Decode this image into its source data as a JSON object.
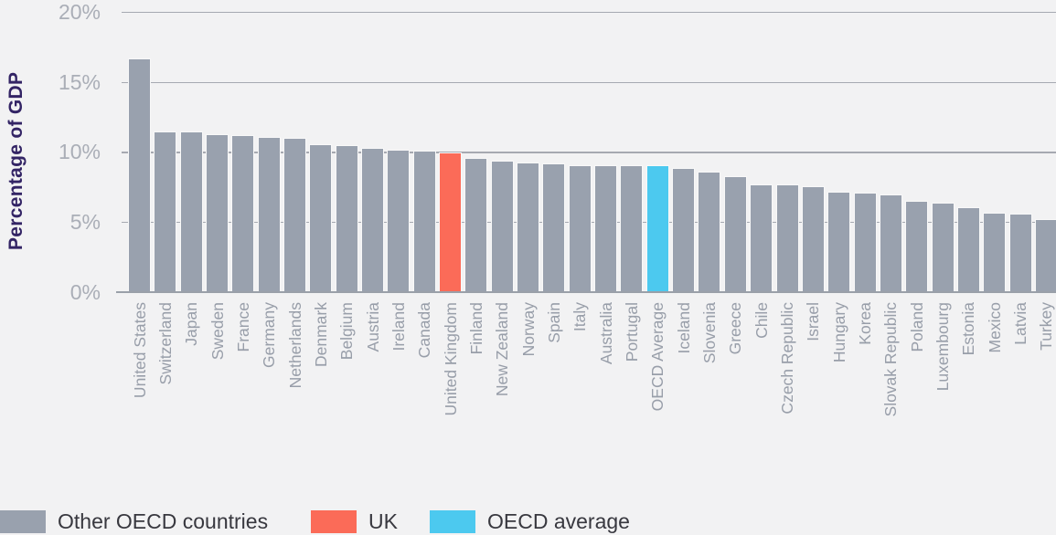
{
  "chart_data": {
    "type": "bar",
    "title": "",
    "xlabel": "",
    "ylabel": "Percentage of GDP",
    "ylim": [
      0,
      20
    ],
    "y_ticks": [
      {
        "label": "0%",
        "value": 0
      },
      {
        "label": "5%",
        "value": 5
      },
      {
        "label": "10%",
        "value": 10
      },
      {
        "label": "15%",
        "value": 15
      },
      {
        "label": "20%",
        "value": 20
      }
    ],
    "grid": "horizontal gridlines at each 5% tick, drawn behind bars",
    "legend_position": "bottom",
    "categories": [
      "United States",
      "Switzerland",
      "Japan",
      "Sweden",
      "France",
      "Germany",
      "Netherlands",
      "Denmark",
      "Belgium",
      "Austria",
      "Ireland",
      "Canada",
      "United Kingdom",
      "Finland",
      "New Zealand",
      "Norway",
      "Spain",
      "Italy",
      "Australia",
      "Portugal",
      "OECD Average",
      "Iceland",
      "Slovenia",
      "Greece",
      "Chile",
      "Czech Republic",
      "Israel",
      "Hungary",
      "Korea",
      "Slovak Republic",
      "Poland",
      "Luxembourg",
      "Estonia",
      "Mexico",
      "Latvia",
      "Turkey"
    ],
    "values": [
      16.6,
      11.4,
      11.4,
      11.2,
      11.1,
      11.0,
      10.9,
      10.5,
      10.4,
      10.2,
      10.1,
      10.0,
      9.9,
      9.5,
      9.3,
      9.2,
      9.1,
      9.0,
      9.0,
      9.0,
      9.0,
      8.8,
      8.5,
      8.2,
      7.6,
      7.6,
      7.5,
      7.1,
      7.0,
      6.9,
      6.4,
      6.3,
      6.0,
      5.6,
      5.5,
      5.1
    ],
    "highlighted_bars": {
      "uk_category": "United Kingdom",
      "oecd_category": "OECD Average"
    }
  },
  "colors": {
    "background": "#f2f2f3",
    "bar_default": "#99a1ae",
    "bar_uk": "#fb6b58",
    "bar_oecd": "#4cc9ef",
    "gridline": "#a6a9b1",
    "axis_title": "#332465",
    "tick_label": "#aaaeb7",
    "x_label": "#989ea9",
    "legend_text": "#38383f"
  },
  "legend": {
    "items": [
      {
        "label": "Other OECD countries",
        "color": "#99a1ae"
      },
      {
        "label": "UK",
        "color": "#fb6b58"
      },
      {
        "label": "OECD average",
        "color": "#4cc9ef"
      }
    ]
  }
}
